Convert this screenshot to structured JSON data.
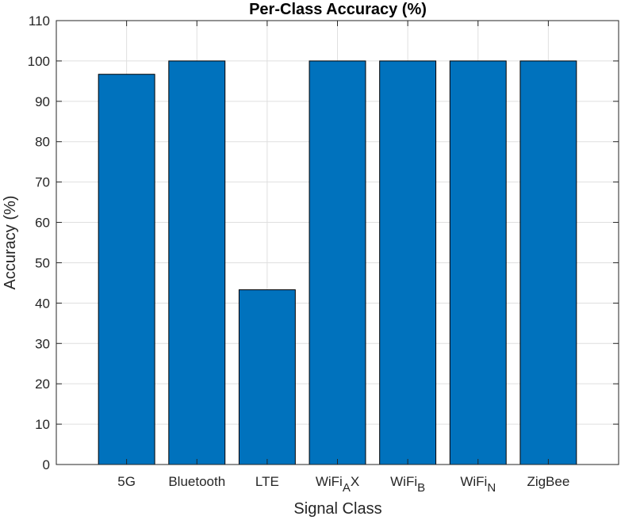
{
  "chart_data": {
    "type": "bar",
    "title": "Per-Class Accuracy (%)",
    "xlabel": "Signal Class",
    "ylabel": "Accuracy (%)",
    "categories": [
      {
        "label": "5G"
      },
      {
        "label": "Bluetooth"
      },
      {
        "label": "LTE"
      },
      {
        "label": "WiFi",
        "sub": "A",
        "suffix": "X"
      },
      {
        "label": "WiFi",
        "sub": "B"
      },
      {
        "label": "WiFi",
        "sub": "N"
      },
      {
        "label": "ZigBee"
      }
    ],
    "values": [
      96.7,
      100,
      43.3,
      100,
      100,
      100,
      100
    ],
    "ylim": [
      0,
      110
    ],
    "yticks": [
      "0",
      "10",
      "20",
      "30",
      "40",
      "50",
      "60",
      "70",
      "80",
      "90",
      "100",
      "110"
    ],
    "grid": true,
    "bar_color": "#0072BD"
  }
}
